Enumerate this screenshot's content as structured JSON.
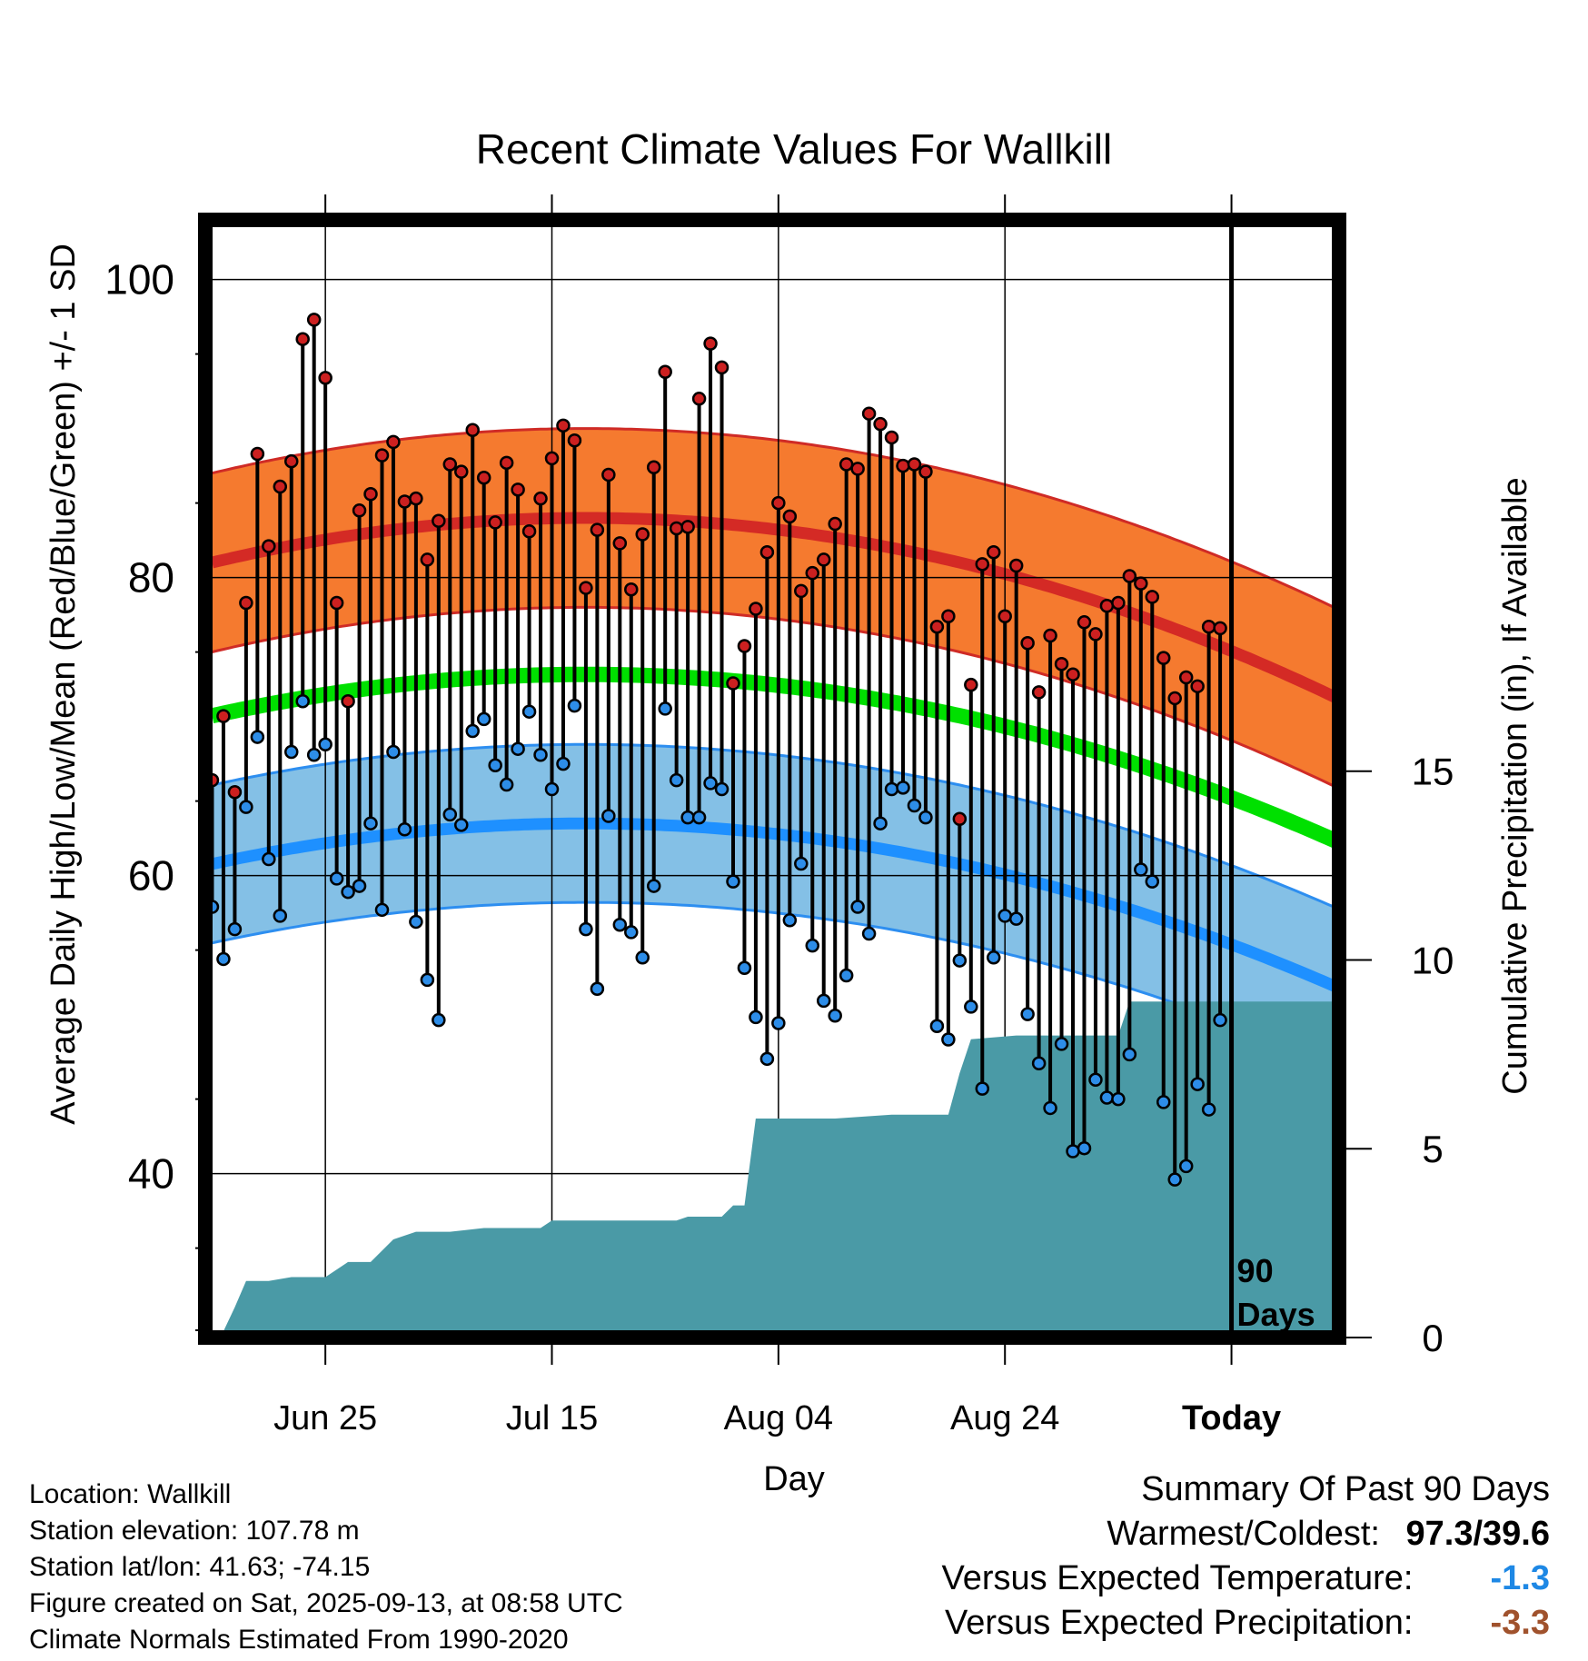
{
  "chart_data": {
    "type": "line",
    "title": "Recent Climate Values For Wallkill",
    "xlabel": "Day",
    "ylabel": "Average Daily High/Low/Mean (Red/Blue/Green) +/- 1 SD",
    "y2label": "Cumulative Precipitation (in), If Available",
    "ylim": [
      29,
      104
    ],
    "y_ticks": [
      100,
      80,
      60,
      40
    ],
    "y2lim": [
      0,
      29.6
    ],
    "y2_ticks": [
      15,
      10,
      5,
      0
    ],
    "x_ticks": [
      "Jun 25",
      "Jul 15",
      "Aug 04",
      "Aug 24",
      "Today"
    ],
    "x_tick_days": [
      10,
      30,
      50,
      70,
      90
    ],
    "xlim": [
      -0.6,
      99.5
    ],
    "today_day": 90,
    "annotation": "90\nDays",
    "colors": {
      "high_band": "#f57a2f",
      "high_line": "#d42a25",
      "high_edge": "#cf2b26",
      "mean_line": "#00e000",
      "low_band": "#84c0e6",
      "low_line": "#1e90ff",
      "low_edge": "#2d8ef0",
      "precip": "#4a9aa6",
      "high_dot": "#cc2020",
      "low_dot": "#2d8de8"
    },
    "normals": {
      "high_center": 84,
      "high_amp": 0.00275,
      "high_peak_day": 33,
      "low_center": 63.5,
      "low_amp": 0.0025,
      "low_peak_day": 33,
      "mean_center": 73.5,
      "mean_amp": 0.00255,
      "mean_peak_day": 33,
      "high_sd": 6.0,
      "low_sd": 5.3
    },
    "daily_highs": [
      66.4,
      70.7,
      65.6,
      78.3,
      88.3,
      82.1,
      86.1,
      87.8,
      96.0,
      97.3,
      93.4,
      78.3,
      71.7,
      84.5,
      85.6,
      88.2,
      89.1,
      85.1,
      85.3,
      81.2,
      83.8,
      87.6,
      87.1,
      89.9,
      86.7,
      83.7,
      87.7,
      85.9,
      83.1,
      85.3,
      88.0,
      90.2,
      89.2,
      79.3,
      83.2,
      86.9,
      82.3,
      79.2,
      82.9,
      87.4,
      93.8,
      83.3,
      83.4,
      92.0,
      95.7,
      94.1,
      72.9,
      75.4,
      77.9,
      81.7,
      85.0,
      84.1,
      79.1,
      80.3,
      81.2,
      83.6,
      87.6,
      87.3,
      91.0,
      90.3,
      89.4,
      87.5,
      87.6,
      87.1,
      76.7,
      77.4,
      63.8,
      72.8,
      80.9,
      81.7,
      77.4,
      80.8,
      75.6,
      72.3,
      76.1,
      74.2,
      73.5,
      77.0,
      76.2,
      78.1,
      78.3,
      80.1,
      79.6,
      78.7,
      74.6,
      71.9,
      73.3,
      72.7,
      76.7,
      76.6
    ],
    "daily_lows": [
      57.9,
      54.4,
      56.4,
      64.6,
      69.3,
      61.1,
      57.3,
      68.3,
      71.7,
      68.1,
      68.8,
      59.8,
      58.9,
      59.3,
      63.5,
      57.7,
      68.3,
      63.1,
      56.9,
      53.0,
      50.3,
      64.1,
      63.4,
      69.7,
      70.5,
      67.4,
      66.1,
      68.5,
      71.0,
      68.1,
      65.8,
      67.5,
      71.4,
      56.4,
      52.4,
      64.0,
      56.7,
      56.2,
      54.5,
      59.3,
      71.2,
      66.4,
      63.9,
      63.9,
      66.2,
      65.8,
      59.6,
      53.8,
      50.5,
      47.7,
      50.1,
      57.0,
      60.8,
      55.3,
      51.6,
      50.6,
      53.3,
      57.9,
      56.1,
      63.5,
      65.8,
      65.9,
      64.7,
      63.9,
      49.9,
      49.0,
      54.3,
      51.2,
      45.7,
      54.5,
      57.3,
      57.1,
      50.7,
      47.4,
      44.4,
      48.7,
      41.5,
      41.7,
      46.3,
      45.1,
      45.0,
      48.0,
      60.4,
      59.6,
      44.8,
      39.6,
      40.5,
      46.0,
      44.3,
      50.3
    ],
    "precip_cumulative": [
      [
        0.0,
        0.0
      ],
      [
        0.9,
        0.1
      ],
      [
        2.0,
        0.8
      ],
      [
        3.0,
        1.5
      ],
      [
        5.0,
        1.5
      ],
      [
        7.0,
        1.6
      ],
      [
        10.0,
        1.6
      ],
      [
        12.0,
        2.0
      ],
      [
        14.0,
        2.0
      ],
      [
        16.0,
        2.6
      ],
      [
        18.0,
        2.8
      ],
      [
        21.0,
        2.8
      ],
      [
        24.0,
        2.9
      ],
      [
        29.0,
        2.9
      ],
      [
        30.0,
        3.1
      ],
      [
        34.0,
        3.1
      ],
      [
        41.0,
        3.1
      ],
      [
        42.0,
        3.2
      ],
      [
        43.0,
        3.2
      ],
      [
        45.0,
        3.2
      ],
      [
        46.0,
        3.5
      ],
      [
        47.0,
        3.5
      ],
      [
        48.0,
        5.8
      ],
      [
        55.0,
        5.8
      ],
      [
        60.0,
        5.9
      ],
      [
        65.0,
        5.9
      ],
      [
        66.0,
        7.0
      ],
      [
        67.0,
        7.9
      ],
      [
        71.0,
        8.0
      ],
      [
        80.0,
        8.0
      ],
      [
        81.0,
        8.9
      ],
      [
        99.0,
        8.9
      ]
    ]
  },
  "footer": {
    "location": "Location: Wallkill",
    "elevation": "Station elevation: 107.78 m",
    "latlon": "Station lat/lon: 41.63; -74.15",
    "created": "Figure created on Sat, 2025-09-13, at 08:58 UTC",
    "normals": "Climate Normals Estimated From 1990-2020"
  },
  "summary": {
    "heading": "Summary Of Past 90 Days",
    "extremes_label": "Warmest/Coldest:",
    "extremes_value": "97.3/39.6",
    "temp_label": "Versus Expected Temperature:",
    "temp_value": "-1.3",
    "temp_color": "#1e88e5",
    "precip_label": "Versus Expected Precipitation:",
    "precip_value": "-3.3",
    "precip_color": "#a0522d"
  }
}
